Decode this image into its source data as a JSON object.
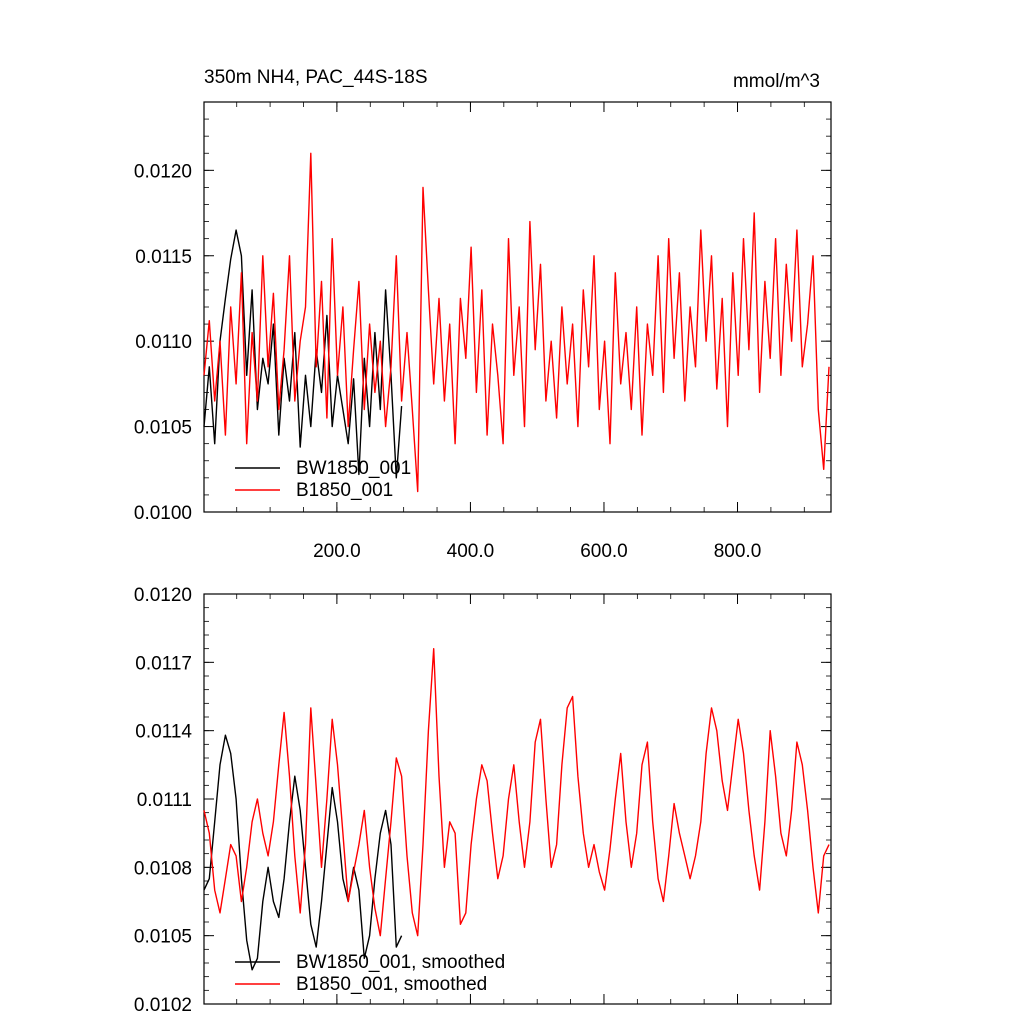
{
  "colors": {
    "series_bw": "#000000",
    "series_b": "#ff0000",
    "axis": "#000000"
  },
  "chart_data": [
    {
      "type": "line",
      "title": "350m NH4, PAC_44S-18S",
      "units_label": "mmol/m^3",
      "xlim": [
        1,
        940
      ],
      "ylim": [
        0.01,
        0.0124
      ],
      "xticks": [
        200,
        400,
        600,
        800
      ],
      "xtick_labels": [
        "200.0",
        "400.0",
        "600.0",
        "800.0"
      ],
      "yticks": [
        0.01,
        0.0105,
        0.011,
        0.0115,
        0.012
      ],
      "ytick_labels": [
        "0.0100",
        "0.0105",
        "0.0110",
        "0.0115",
        "0.0120"
      ],
      "legend_position": "bottom-left",
      "grid": false,
      "series": [
        {
          "name": "BW1850_001",
          "color": "#000000",
          "x_start": 1,
          "x_step": 8,
          "values": [
            0.0105,
            0.01085,
            0.0104,
            0.011,
            0.01125,
            0.01148,
            0.01165,
            0.0115,
            0.0108,
            0.0113,
            0.0106,
            0.0109,
            0.01075,
            0.0111,
            0.01045,
            0.0109,
            0.01065,
            0.01105,
            0.01038,
            0.0108,
            0.0105,
            0.01095,
            0.0107,
            0.01115,
            0.0105,
            0.0108,
            0.0106,
            0.0104,
            0.01078,
            0.01022,
            0.0109,
            0.0105,
            0.01105,
            0.0106,
            0.0113,
            0.0108,
            0.0102,
            0.01062
          ]
        },
        {
          "name": "B1850_001",
          "color": "#ff0000",
          "x_start": 1,
          "x_step": 8,
          "values": [
            0.0108,
            0.01112,
            0.01065,
            0.011,
            0.01045,
            0.0112,
            0.01075,
            0.0114,
            0.0104,
            0.01105,
            0.01065,
            0.0115,
            0.01085,
            0.01128,
            0.0106,
            0.01095,
            0.0115,
            0.01065,
            0.011,
            0.0112,
            0.0121,
            0.01085,
            0.01135,
            0.01055,
            0.0116,
            0.0108,
            0.0112,
            0.0105,
            0.01095,
            0.01135,
            0.0106,
            0.0111,
            0.0107,
            0.011,
            0.0105,
            0.01085,
            0.0115,
            0.01065,
            0.01105,
            0.0106,
            0.01012,
            0.0119,
            0.0113,
            0.01075,
            0.01125,
            0.01065,
            0.0111,
            0.0104,
            0.01125,
            0.0109,
            0.01155,
            0.0107,
            0.0113,
            0.01045,
            0.0111,
            0.0108,
            0.0104,
            0.0116,
            0.0108,
            0.0112,
            0.0105,
            0.0117,
            0.01095,
            0.01145,
            0.01065,
            0.011,
            0.01055,
            0.0112,
            0.01075,
            0.0111,
            0.0105,
            0.0113,
            0.01085,
            0.0115,
            0.0106,
            0.011,
            0.0104,
            0.0114,
            0.01075,
            0.01105,
            0.0106,
            0.0112,
            0.01045,
            0.0111,
            0.0108,
            0.0115,
            0.0107,
            0.0116,
            0.0109,
            0.0114,
            0.01065,
            0.0112,
            0.01085,
            0.01165,
            0.011,
            0.0115,
            0.01072,
            0.01125,
            0.0105,
            0.0114,
            0.0108,
            0.0116,
            0.01095,
            0.01175,
            0.0107,
            0.01135,
            0.0109,
            0.0116,
            0.0108,
            0.01145,
            0.011,
            0.01165,
            0.01085,
            0.0111,
            0.0115,
            0.0106,
            0.01025,
            0.01085
          ]
        }
      ]
    },
    {
      "type": "line",
      "xlim": [
        1,
        940
      ],
      "ylim": [
        0.0102,
        0.012
      ],
      "yticks": [
        0.0102,
        0.0105,
        0.0108,
        0.0111,
        0.0114,
        0.0117,
        0.012
      ],
      "ytick_labels": [
        "0.0102",
        "0.0105",
        "0.0108",
        "0.0111",
        "0.0114",
        "0.0117",
        "0.0120"
      ],
      "legend_position": "bottom-left",
      "grid": false,
      "series": [
        {
          "name": "BW1850_001, smoothed",
          "color": "#000000",
          "x_start": 1,
          "x_step": 8,
          "values": [
            0.0107,
            0.01075,
            0.011,
            0.01125,
            0.01138,
            0.0113,
            0.0111,
            0.01075,
            0.01048,
            0.01035,
            0.0104,
            0.01065,
            0.0108,
            0.01065,
            0.01058,
            0.01075,
            0.011,
            0.0112,
            0.01105,
            0.0108,
            0.01055,
            0.01045,
            0.01065,
            0.0109,
            0.01115,
            0.011,
            0.01075,
            0.01065,
            0.0108,
            0.0107,
            0.0104,
            0.0105,
            0.01075,
            0.01095,
            0.01105,
            0.0109,
            0.01045,
            0.0105
          ]
        },
        {
          "name": "B1850_001, smoothed",
          "color": "#ff0000",
          "x_start": 1,
          "x_step": 8,
          "values": [
            0.01105,
            0.01095,
            0.0107,
            0.0106,
            0.01075,
            0.0109,
            0.01085,
            0.01065,
            0.0108,
            0.011,
            0.0111,
            0.01095,
            0.01085,
            0.011,
            0.01125,
            0.01148,
            0.0112,
            0.01085,
            0.0106,
            0.0109,
            0.0115,
            0.01115,
            0.0108,
            0.0111,
            0.01145,
            0.01125,
            0.01095,
            0.01065,
            0.01078,
            0.0109,
            0.01105,
            0.0108,
            0.01062,
            0.0105,
            0.01075,
            0.011,
            0.01128,
            0.0112,
            0.01085,
            0.0106,
            0.0105,
            0.0109,
            0.0114,
            0.01176,
            0.0112,
            0.0108,
            0.011,
            0.01095,
            0.01055,
            0.0106,
            0.0109,
            0.0111,
            0.01125,
            0.01118,
            0.01095,
            0.01075,
            0.01085,
            0.0111,
            0.01125,
            0.011,
            0.0108,
            0.011,
            0.01135,
            0.01145,
            0.0111,
            0.0108,
            0.0109,
            0.01125,
            0.0115,
            0.01155,
            0.0112,
            0.01095,
            0.0108,
            0.0109,
            0.01078,
            0.0107,
            0.01088,
            0.0111,
            0.0113,
            0.011,
            0.0108,
            0.01095,
            0.01125,
            0.01135,
            0.011,
            0.01075,
            0.01065,
            0.01085,
            0.01108,
            0.01095,
            0.01085,
            0.01075,
            0.01085,
            0.011,
            0.0113,
            0.0115,
            0.0114,
            0.01118,
            0.01105,
            0.01125,
            0.01145,
            0.0113,
            0.01105,
            0.01085,
            0.0107,
            0.011,
            0.0114,
            0.0112,
            0.01095,
            0.01085,
            0.01105,
            0.01135,
            0.01125,
            0.01105,
            0.0108,
            0.0106,
            0.01085,
            0.0109
          ]
        }
      ]
    }
  ]
}
